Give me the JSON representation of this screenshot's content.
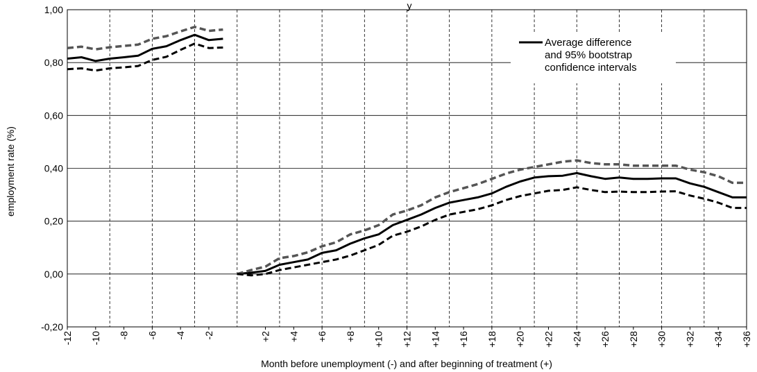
{
  "chart_data": {
    "type": "line",
    "title_fragment": "y",
    "xlabel": "Month before unemployment (-) and after beginning of treatment (+)",
    "ylabel": "employment rate (%)",
    "ylim": [
      -0.2,
      1.0
    ],
    "y_ticks": [
      "-0,20",
      "0,00",
      "0,20",
      "0,40",
      "0,60",
      "0,80",
      "1,00"
    ],
    "x_tick_labels": [
      "-12",
      "-10",
      "-8",
      "-6",
      "-4",
      "-2",
      "+2",
      "+4",
      "+6",
      "+8",
      "+10",
      "+12",
      "+14",
      "+16",
      "+18",
      "+20",
      "+22",
      "+24",
      "+26",
      "+28",
      "+30",
      "+32",
      "+34",
      "+36"
    ],
    "grid": "horizontal solid, vertical dashed",
    "legend_lines": [
      "Average difference",
      "and 95% bootstrap",
      "confidence intervals"
    ],
    "legend_placement": "top-right",
    "pre_months": [
      -12,
      -11,
      -10,
      -9,
      -8,
      -7,
      -6,
      -5,
      -4,
      -3,
      -2,
      -1
    ],
    "series_pre": [
      {
        "role": "mean",
        "color": "#000000",
        "values": [
          0.815,
          0.82,
          0.806,
          0.815,
          0.82,
          0.826,
          0.852,
          0.862,
          0.885,
          0.905,
          0.885,
          0.89
        ]
      },
      {
        "role": "upper",
        "color": "#555555",
        "values": [
          0.855,
          0.86,
          0.85,
          0.858,
          0.863,
          0.868,
          0.89,
          0.9,
          0.918,
          0.935,
          0.92,
          0.925
        ]
      },
      {
        "role": "lower",
        "color": "#000000",
        "values": [
          0.775,
          0.778,
          0.77,
          0.778,
          0.782,
          0.787,
          0.81,
          0.822,
          0.848,
          0.872,
          0.855,
          0.857
        ]
      }
    ],
    "post_months": [
      0,
      1,
      2,
      3,
      4,
      5,
      6,
      7,
      8,
      9,
      10,
      11,
      12,
      13,
      14,
      15,
      16,
      17,
      18,
      19,
      20,
      21,
      22,
      23,
      24,
      25,
      26,
      27,
      28,
      29,
      30,
      31,
      32,
      33,
      34,
      35,
      36
    ],
    "series_post": [
      {
        "role": "mean",
        "color": "#000000",
        "values": [
          0.0,
          0.005,
          0.012,
          0.035,
          0.045,
          0.055,
          0.08,
          0.09,
          0.115,
          0.135,
          0.15,
          0.185,
          0.205,
          0.225,
          0.25,
          0.27,
          0.28,
          0.29,
          0.305,
          0.33,
          0.35,
          0.365,
          0.37,
          0.372,
          0.382,
          0.37,
          0.36,
          0.365,
          0.36,
          0.36,
          0.362,
          0.362,
          0.343,
          0.33,
          0.31,
          0.29,
          0.29
        ]
      },
      {
        "role": "upper",
        "color": "#555555",
        "values": [
          0.0,
          0.015,
          0.028,
          0.06,
          0.068,
          0.082,
          0.105,
          0.12,
          0.15,
          0.165,
          0.185,
          0.225,
          0.24,
          0.26,
          0.29,
          0.31,
          0.325,
          0.34,
          0.36,
          0.38,
          0.395,
          0.405,
          0.415,
          0.425,
          0.43,
          0.42,
          0.415,
          0.415,
          0.41,
          0.41,
          0.41,
          0.41,
          0.395,
          0.385,
          0.37,
          0.345,
          0.345
        ]
      },
      {
        "role": "lower",
        "color": "#000000",
        "values": [
          0.0,
          -0.005,
          0.0,
          0.015,
          0.025,
          0.035,
          0.045,
          0.055,
          0.07,
          0.09,
          0.11,
          0.145,
          0.16,
          0.18,
          0.205,
          0.225,
          0.235,
          0.245,
          0.26,
          0.28,
          0.295,
          0.305,
          0.315,
          0.318,
          0.328,
          0.318,
          0.31,
          0.312,
          0.31,
          0.31,
          0.312,
          0.313,
          0.297,
          0.285,
          0.27,
          0.25,
          0.25
        ]
      }
    ]
  }
}
